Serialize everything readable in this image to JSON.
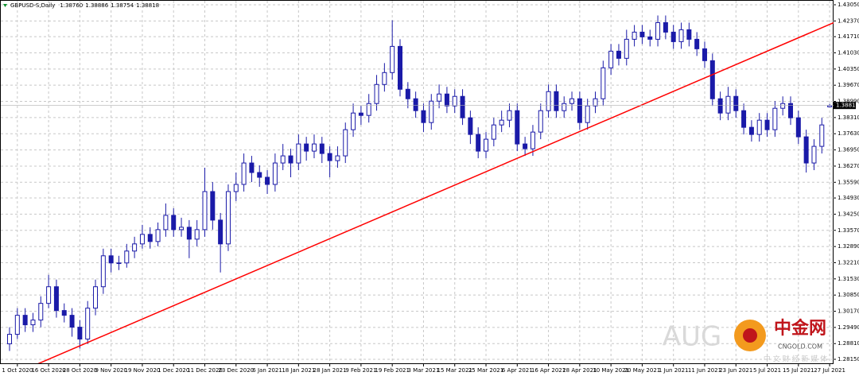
{
  "chart_data": {
    "type": "candlestick",
    "title": "GBPUSD-S,Daily",
    "header_values": [
      {
        "value": 1.3876,
        "label": "1.38760"
      },
      {
        "value": 1.38886,
        "label": "1.38886"
      },
      {
        "value": 1.38754,
        "label": "1.38754"
      },
      {
        "value": 1.38818,
        "label": "1.38818"
      }
    ],
    "color": "#1a1aa8",
    "categories": [
      null,
      "1 Oct 2020",
      null,
      null,
      null,
      "16 Oct 2020",
      null,
      null,
      null,
      "28 Oct 2020",
      null,
      null,
      null,
      "9 Nov 2020",
      null,
      null,
      null,
      "19 Nov 2020",
      null,
      null,
      null,
      "1 Dec 2020",
      null,
      null,
      null,
      "11 Dec 2020",
      null,
      null,
      null,
      "23 Dec 2020",
      null,
      null,
      null,
      "6 Jan 2021",
      null,
      null,
      null,
      "18 Jan 2021",
      null,
      null,
      null,
      "28 Jan 2021",
      null,
      null,
      null,
      "9 Feb 2021",
      null,
      null,
      null,
      "19 Feb 2021",
      null,
      null,
      null,
      "3 Mar 2021",
      null,
      null,
      null,
      "15 Mar 2021",
      null,
      null,
      null,
      "25 Mar 2021",
      null,
      null,
      null,
      "6 Apr 2021",
      null,
      null,
      null,
      "16 Apr 2021",
      null,
      null,
      null,
      "28 Apr 2021",
      null,
      null,
      null,
      "10 May 2021",
      null,
      null,
      null,
      "20 May 2021",
      null,
      null,
      null,
      "1 Jun 2021",
      null,
      null,
      null,
      "11 Jun 2021",
      null,
      null,
      null,
      "23 Jun 2021",
      null,
      null,
      null,
      "5 Jul 2021",
      null,
      null,
      null,
      "15 Jul 2021",
      null,
      null,
      null,
      "27 Jul 2021"
    ],
    "open": [
      1.288,
      1.292,
      1.3,
      1.296,
      1.298,
      1.305,
      1.312,
      1.302,
      1.3,
      1.295,
      1.29,
      1.303,
      1.312,
      1.325,
      1.322,
      1.322,
      1.327,
      1.33,
      1.334,
      1.331,
      1.336,
      1.342,
      1.336,
      1.337,
      1.332,
      1.336,
      1.352,
      1.34,
      1.33,
      1.352,
      1.355,
      1.364,
      1.36,
      1.358,
      1.355,
      1.364,
      1.367,
      1.364,
      1.372,
      1.369,
      1.372,
      1.368,
      1.365,
      1.367,
      1.378,
      1.385,
      1.384,
      1.389,
      1.397,
      1.402,
      1.413,
      1.395,
      1.391,
      1.386,
      1.381,
      1.39,
      1.393,
      1.388,
      1.392,
      1.383,
      1.376,
      1.369,
      1.374,
      1.38,
      1.382,
      1.386,
      1.372,
      1.37,
      1.377,
      1.386,
      1.394,
      1.386,
      1.389,
      1.391,
      1.381,
      1.388,
      1.391,
      1.404,
      1.411,
      1.408,
      1.416,
      1.419,
      1.417,
      1.416,
      1.423,
      1.419,
      1.415,
      1.42,
      1.416,
      1.412,
      1.407,
      1.391,
      1.385,
      1.392,
      1.386,
      1.379,
      1.376,
      1.382,
      1.378,
      1.387,
      1.389,
      1.383,
      1.375,
      1.364,
      1.371,
      1.3876
    ],
    "high": [
      1.295,
      1.303,
      1.303,
      1.301,
      1.308,
      1.317,
      1.315,
      1.305,
      1.303,
      1.298,
      1.306,
      1.315,
      1.328,
      1.328,
      1.325,
      1.33,
      1.333,
      1.338,
      1.337,
      1.339,
      1.347,
      1.345,
      1.341,
      1.34,
      1.34,
      1.362,
      1.356,
      1.343,
      1.355,
      1.36,
      1.368,
      1.367,
      1.363,
      1.361,
      1.368,
      1.372,
      1.37,
      1.376,
      1.375,
      1.376,
      1.375,
      1.371,
      1.371,
      1.381,
      1.389,
      1.388,
      1.393,
      1.401,
      1.406,
      1.424,
      1.416,
      1.398,
      1.394,
      1.389,
      1.393,
      1.397,
      1.396,
      1.395,
      1.395,
      1.386,
      1.379,
      1.377,
      1.383,
      1.386,
      1.389,
      1.389,
      1.375,
      1.38,
      1.389,
      1.397,
      1.397,
      1.392,
      1.394,
      1.394,
      1.391,
      1.394,
      1.407,
      1.414,
      1.414,
      1.42,
      1.422,
      1.422,
      1.42,
      1.426,
      1.426,
      1.422,
      1.423,
      1.423,
      1.419,
      1.415,
      1.41,
      1.394,
      1.396,
      1.395,
      1.389,
      1.382,
      1.385,
      1.385,
      1.39,
      1.392,
      1.392,
      1.386,
      1.378,
      1.374,
      1.383,
      1.38886
    ],
    "low": [
      1.285,
      1.29,
      1.293,
      1.293,
      1.295,
      1.303,
      1.299,
      1.297,
      1.291,
      1.286,
      1.288,
      1.3,
      1.309,
      1.318,
      1.319,
      1.32,
      1.324,
      1.328,
      1.328,
      1.329,
      1.333,
      1.333,
      1.333,
      1.324,
      1.329,
      1.333,
      1.336,
      1.318,
      1.327,
      1.348,
      1.352,
      1.356,
      1.354,
      1.351,
      1.352,
      1.361,
      1.358,
      1.361,
      1.365,
      1.366,
      1.364,
      1.358,
      1.362,
      1.364,
      1.375,
      1.38,
      1.381,
      1.386,
      1.394,
      1.399,
      1.392,
      1.387,
      1.383,
      1.377,
      1.378,
      1.387,
      1.385,
      1.385,
      1.38,
      1.372,
      1.366,
      1.366,
      1.371,
      1.377,
      1.379,
      1.369,
      1.367,
      1.367,
      1.374,
      1.383,
      1.383,
      1.383,
      1.386,
      1.378,
      1.378,
      1.385,
      1.388,
      1.401,
      1.405,
      1.405,
      1.413,
      1.414,
      1.413,
      1.413,
      1.416,
      1.412,
      1.412,
      1.413,
      1.409,
      1.404,
      1.388,
      1.382,
      1.382,
      1.383,
      1.376,
      1.373,
      1.373,
      1.375,
      1.375,
      1.384,
      1.38,
      1.372,
      1.36,
      1.361,
      1.368,
      1.38754
    ],
    "close": [
      1.292,
      1.3,
      1.296,
      1.298,
      1.305,
      1.312,
      1.302,
      1.3,
      1.295,
      1.29,
      1.303,
      1.312,
      1.325,
      1.322,
      1.322,
      1.327,
      1.33,
      1.334,
      1.331,
      1.336,
      1.342,
      1.336,
      1.337,
      1.332,
      1.336,
      1.352,
      1.34,
      1.33,
      1.352,
      1.355,
      1.364,
      1.36,
      1.358,
      1.355,
      1.364,
      1.367,
      1.364,
      1.372,
      1.369,
      1.372,
      1.368,
      1.365,
      1.367,
      1.378,
      1.385,
      1.384,
      1.389,
      1.397,
      1.402,
      1.413,
      1.395,
      1.391,
      1.386,
      1.381,
      1.39,
      1.393,
      1.388,
      1.392,
      1.383,
      1.376,
      1.369,
      1.374,
      1.38,
      1.382,
      1.386,
      1.372,
      1.37,
      1.377,
      1.386,
      1.394,
      1.386,
      1.389,
      1.391,
      1.381,
      1.388,
      1.391,
      1.404,
      1.411,
      1.408,
      1.416,
      1.419,
      1.417,
      1.416,
      1.423,
      1.419,
      1.415,
      1.42,
      1.416,
      1.412,
      1.407,
      1.391,
      1.385,
      1.392,
      1.386,
      1.379,
      1.376,
      1.382,
      1.378,
      1.387,
      1.389,
      1.383,
      1.375,
      1.364,
      1.371,
      1.38,
      1.38818
    ],
    "ylim": [
      1.2815,
      1.4305
    ],
    "yticks": [
      {
        "value": 1.4305,
        "label": "1.43050"
      },
      {
        "value": 1.4237,
        "label": "1.42370"
      },
      {
        "value": 1.4171,
        "label": "1.41710"
      },
      {
        "value": 1.4103,
        "label": "1.41030"
      },
      {
        "value": 1.4035,
        "label": "1.40350"
      },
      {
        "value": 1.3967,
        "label": "1.39670"
      },
      {
        "value": 1.3899,
        "label": "1.38990"
      },
      {
        "value": 1.3831,
        "label": "1.38310"
      },
      {
        "value": 1.3763,
        "label": "1.37630"
      },
      {
        "value": 1.3695,
        "label": "1.36950"
      },
      {
        "value": 1.3627,
        "label": "1.36270"
      },
      {
        "value": 1.3559,
        "label": "1.35590"
      },
      {
        "value": 1.3493,
        "label": "1.34930"
      },
      {
        "value": 1.3425,
        "label": "1.34250"
      },
      {
        "value": 1.3357,
        "label": "1.33570"
      },
      {
        "value": 1.3289,
        "label": "1.32890"
      },
      {
        "value": 1.3221,
        "label": "1.32210"
      },
      {
        "value": 1.3153,
        "label": "1.31530"
      },
      {
        "value": 1.3085,
        "label": "1.30850"
      },
      {
        "value": 1.3017,
        "label": "1.30170"
      },
      {
        "value": 1.2949,
        "label": "1.29490"
      },
      {
        "value": 1.2881,
        "label": "1.28810"
      },
      {
        "value": 1.2815,
        "label": "1.28150"
      }
    ],
    "grid": true,
    "trendline": {
      "color": "#ff0000",
      "x": [
        2.85,
        105.6
      ],
      "y": [
        1.2785,
        1.4231
      ]
    },
    "watermark": {
      "text": "AUG",
      "logo": "中金网",
      "site": "CNGOLD.COM",
      "slogan": "中 文 财 经 新 媒 体"
    }
  }
}
